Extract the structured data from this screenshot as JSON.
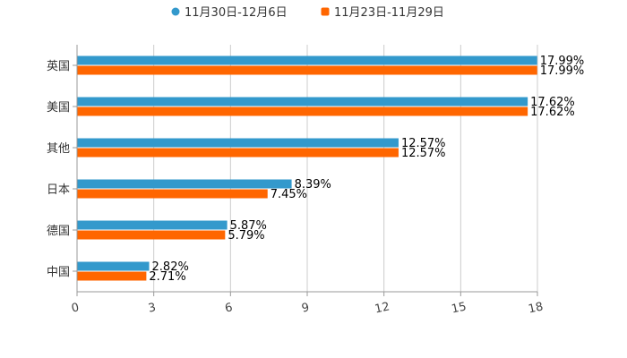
{
  "chart_data": {
    "type": "bar",
    "orientation": "horizontal",
    "categories": [
      "英国",
      "美国",
      "其他",
      "日本",
      "德国",
      "中国"
    ],
    "series": [
      {
        "name": "11月30日-12月6日",
        "color": "#3399CC",
        "values": [
          17.99,
          17.62,
          12.57,
          8.39,
          5.87,
          2.82
        ],
        "labels": [
          "17.99%",
          "17.62%",
          "12.57%",
          "8.39%",
          "5.87%",
          "2.82%"
        ]
      },
      {
        "name": "11月23日-11月29日",
        "color": "#FF6600",
        "values": [
          17.99,
          17.62,
          12.57,
          7.45,
          5.79,
          2.71
        ],
        "labels": [
          "17.99%",
          "17.62%",
          "12.57%",
          "7.45%",
          "5.79%",
          "2.71%"
        ]
      }
    ],
    "xlim": [
      0,
      18
    ],
    "xticks": [
      0,
      3,
      6,
      9,
      12,
      15,
      18
    ],
    "xtick_labels": [
      "0",
      "3",
      "6",
      "9",
      "12",
      "15",
      "18"
    ],
    "grid": true,
    "legend": "top-center",
    "title": "",
    "xlabel": "",
    "ylabel": ""
  }
}
